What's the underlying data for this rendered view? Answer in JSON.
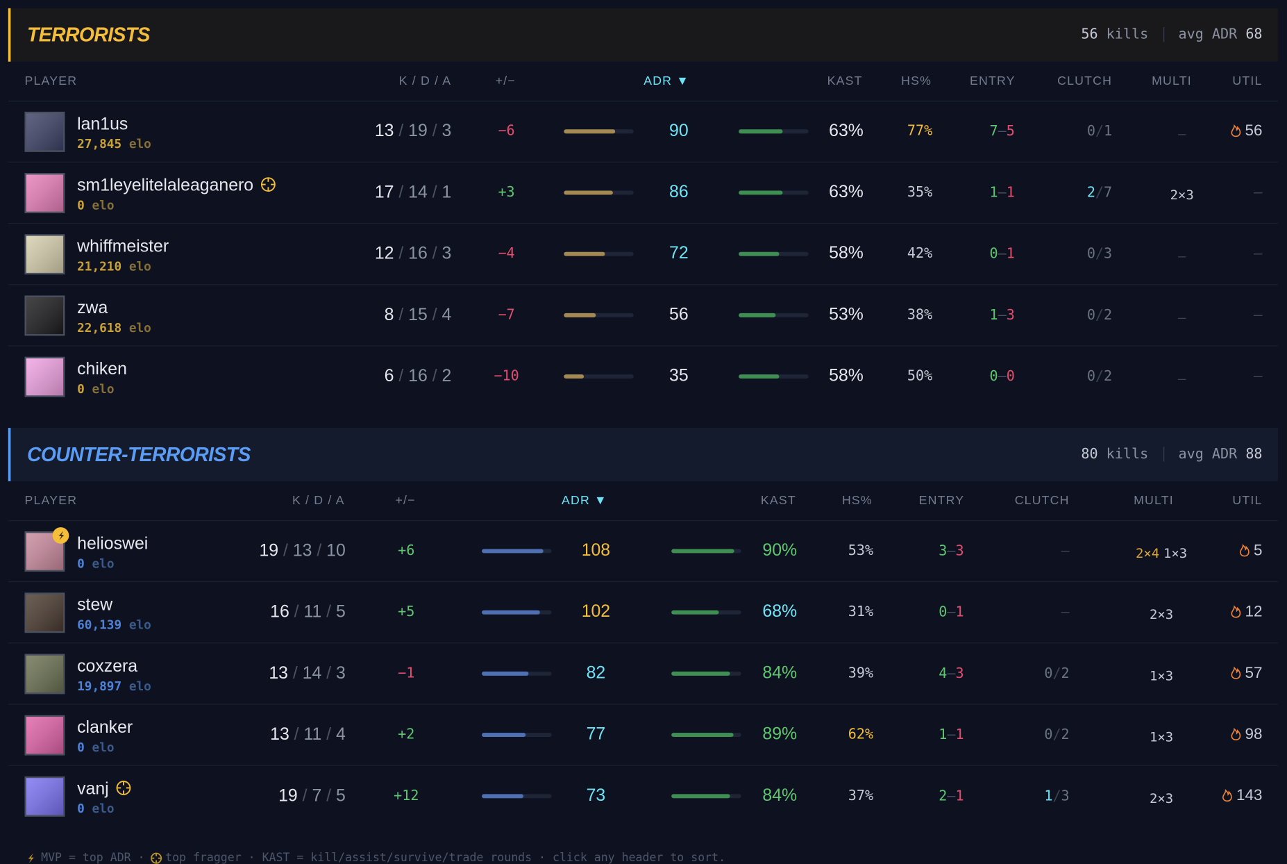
{
  "teams": [
    {
      "name": "TERRORISTS",
      "side": "t",
      "stats": [
        "56 kills",
        "avg ADR 68"
      ],
      "columns": [
        "PLAYER",
        "K / D / A",
        "+/−",
        "ADR ▼",
        "KAST",
        "HS%",
        "ENTRY",
        "CLUTCH",
        "MULTI",
        "UTIL"
      ],
      "players": [
        {
          "name": "lan1us",
          "elo": "27,845 elo",
          "avatar": "#3d4266",
          "kda": "13 / 19 / 3",
          "diff": "−6",
          "adr": 90,
          "kast": 63,
          "kast_label": "63%",
          "hs": "77%",
          "entry": "7–5",
          "clutch": "0/1",
          "multi": [
            "—"
          ],
          "util": "56"
        },
        {
          "name": "sm1leyelitelaleaganero",
          "badge": "top-fragger",
          "elo": "0 elo",
          "avatar": "#e77fb8",
          "kda": "17 / 14 / 1",
          "diff": "+3",
          "adr": 86,
          "kast": 63,
          "kast_label": "63%",
          "hs": "35%",
          "entry": "1–1",
          "clutch": "2/7",
          "multi": [
            "2×3"
          ],
          "util": "–"
        },
        {
          "name": "whiffmeister",
          "elo": "21,210 elo",
          "avatar": "#d6cfae",
          "kda": "12 / 16 / 3",
          "diff": "−4",
          "adr": 72,
          "kast": 58,
          "kast_label": "58%",
          "hs": "42%",
          "entry": "0–1",
          "clutch": "0/3",
          "multi": [
            "—"
          ],
          "util": "–"
        },
        {
          "name": "zwa",
          "elo": "22,618 elo",
          "avatar": "#1c1c1e",
          "kda": "8 / 15 / 4",
          "diff": "−7",
          "adr": 56,
          "kast": 53,
          "kast_label": "53%",
          "hs": "38%",
          "entry": "1–3",
          "clutch": "0/2",
          "multi": [
            "—"
          ],
          "util": "–"
        },
        {
          "name": "chiken",
          "elo": "0 elo",
          "avatar": "#f0a2e2",
          "kda": "6 / 16 / 2",
          "diff": "−10",
          "adr": 35,
          "kast": 58,
          "kast_label": "58%",
          "hs": "50%",
          "entry": "0–0",
          "clutch": "0/2",
          "multi": [
            "—"
          ],
          "util": "–"
        }
      ]
    },
    {
      "name": "COUNTER-TERRORISTS",
      "side": "ct",
      "stats": [
        "80 kills",
        "avg ADR 88"
      ],
      "columns": [
        "PLAYER",
        "K / D / A",
        "+/−",
        "ADR ▼",
        "KAST",
        "HS%",
        "ENTRY",
        "CLUTCH",
        "MULTI",
        "UTIL"
      ],
      "players": [
        {
          "name": "helioswei",
          "badge": "mvp",
          "elo": "0 elo",
          "avatar": "#c98a9e",
          "kda": "19 / 13 / 10",
          "diff": "+6",
          "adr": 108,
          "kast": 90,
          "kast_label": "90%",
          "hs": "53%",
          "entry": "3–3",
          "clutch": "–",
          "multi": [
            "2×4",
            "1×3"
          ],
          "util": "5"
        },
        {
          "name": "stew",
          "elo": "60,139 elo",
          "avatar": "#4a3b30",
          "kda": "16 / 11 / 5",
          "diff": "+5",
          "adr": 102,
          "kast": 68,
          "kast_label": "68%",
          "hs": "31%",
          "entry": "0–1",
          "clutch": "–",
          "multi": [
            "2×3"
          ],
          "util": "12"
        },
        {
          "name": "coxzera",
          "elo": "19,897 elo",
          "avatar": "#6b7152",
          "kda": "13 / 14 / 3",
          "diff": "−1",
          "adr": 82,
          "kast": 84,
          "kast_label": "84%",
          "hs": "39%",
          "entry": "4–3",
          "clutch": "0/2",
          "multi": [
            "1×3"
          ],
          "util": "57"
        },
        {
          "name": "clanker",
          "elo": "0 elo",
          "avatar": "#e063a9",
          "kda": "13 / 11 / 4",
          "diff": "+2",
          "adr": 77,
          "kast": 89,
          "kast_label": "89%",
          "hs": "62%",
          "entry": "1–1",
          "clutch": "0/2",
          "multi": [
            "1×3"
          ],
          "util": "98"
        },
        {
          "name": "vanj",
          "badge": "top-fragger",
          "elo": "0 elo",
          "avatar": "#7b72f2",
          "kda": "19 / 7 / 5",
          "diff": "+12",
          "adr": 73,
          "kast": 84,
          "kast_label": "84%",
          "hs": "37%",
          "entry": "2–1",
          "clutch": "1/3",
          "multi": [
            "2×3"
          ],
          "util": "143"
        }
      ]
    }
  ],
  "footer": [
    "MVP = top ADR ·",
    "top fragger · KAST = kill/assist/survive/trade rounds · click any header to sort."
  ]
}
